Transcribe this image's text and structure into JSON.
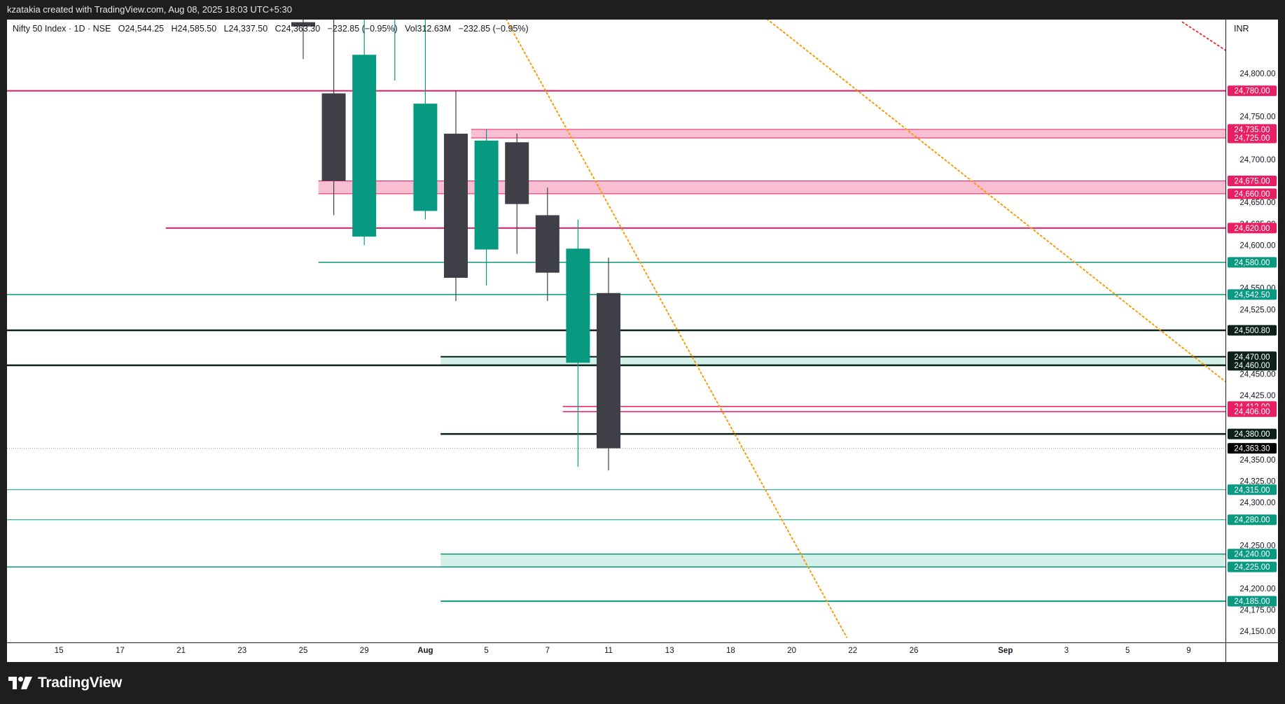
{
  "header": {
    "attribution": "kzatakia created with TradingView.com, Aug 08, 2025 18:03 UTC+5:30"
  },
  "legend": {
    "symbol": "Nifty 50 Index · 1D · NSE",
    "open_label": "O",
    "open": "24,544.25",
    "high_label": "H",
    "high": "24,585.50",
    "low_label": "L",
    "low": "24,337.50",
    "close_label": "C",
    "close": "24,363.30",
    "change": "−232.85 (−0.95%)",
    "vol_label": "Vol",
    "vol": "312.63M",
    "change2": "−232.85 (−0.95%)"
  },
  "currency": "INR",
  "brand": {
    "name": "TradingView",
    "icon": "tradingview-logo-icon"
  },
  "colors": {
    "up": "#089981",
    "down": "#3f3f48",
    "red": "#e91e63",
    "teal": "#089981",
    "black": "#0b2018",
    "orange": "#ff9800",
    "red_dotted": "#e53935"
  },
  "chart_data": {
    "type": "candlestick",
    "y_range": [
      24137,
      24863
    ],
    "y_ticks": [
      "24,800.00",
      "24,750.00",
      "24,700.00",
      "24,650.00",
      "24,625.00",
      "24,600.00",
      "24,550.00",
      "24,525.00",
      "24,450.00",
      "24,425.00",
      "24,350.00",
      "24,325.00",
      "24,300.00",
      "24,250.00",
      "24,200.00",
      "24,175.00",
      "24,150.00"
    ],
    "x_ticks": [
      {
        "label": "15",
        "slot": -13
      },
      {
        "label": "17",
        "slot": -11
      },
      {
        "label": "21",
        "slot": -9
      },
      {
        "label": "23",
        "slot": -7
      },
      {
        "label": "25",
        "slot": -5
      },
      {
        "label": "29",
        "slot": -3
      },
      {
        "label": "Aug",
        "slot": -1
      },
      {
        "label": "5",
        "slot": 1
      },
      {
        "label": "7",
        "slot": 3
      },
      {
        "label": "11",
        "slot": 5
      },
      {
        "label": "13",
        "slot": 7
      },
      {
        "label": "18",
        "slot": 9
      },
      {
        "label": "20",
        "slot": 11
      },
      {
        "label": "22",
        "slot": 13
      },
      {
        "label": "26",
        "slot": 15
      },
      {
        "label": "Sep",
        "slot": 18
      },
      {
        "label": "3",
        "slot": 20
      },
      {
        "label": "5",
        "slot": 22
      },
      {
        "label": "9",
        "slot": 24
      }
    ],
    "candles": [
      {
        "slot": -5,
        "o": 24860,
        "h": 24880,
        "l": 24817,
        "c": 24855
      },
      {
        "slot": -4,
        "o": 24777,
        "h": 24900,
        "l": 24635,
        "c": 24675
      },
      {
        "slot": -3,
        "o": 24610,
        "h": 24900,
        "l": 24600,
        "c": 24822
      },
      {
        "slot": -2,
        "o": 24900,
        "h": 24950,
        "l": 24792,
        "c": 24920
      },
      {
        "slot": -1,
        "o": 24640,
        "h": 24880,
        "l": 24630,
        "c": 24765
      },
      {
        "slot": 0,
        "o": 24730,
        "h": 24780,
        "l": 24535,
        "c": 24562
      },
      {
        "slot": 1,
        "o": 24595,
        "h": 24735,
        "l": 24553,
        "c": 24722
      },
      {
        "slot": 2,
        "o": 24720,
        "h": 24730,
        "l": 24590,
        "c": 24648
      },
      {
        "slot": 3,
        "o": 24635,
        "h": 24667,
        "l": 24535,
        "c": 24568
      },
      {
        "slot": 4,
        "o": 24463,
        "h": 24630,
        "l": 24342,
        "c": 24596
      },
      {
        "slot": 5,
        "o": 24544.25,
        "h": 24585.5,
        "l": 24337.5,
        "c": 24363.3
      }
    ],
    "levels": [
      {
        "price": 24780,
        "label": "24,780.00",
        "color": "red",
        "from_slot": -20,
        "width": 2
      },
      {
        "price": 24620,
        "label": "24,620.00",
        "color": "red",
        "from_slot": -9.5,
        "width": 2
      },
      {
        "price": 24580,
        "label": "24,580.00",
        "color": "teal",
        "from_slot": -4.5,
        "width": 1.5
      },
      {
        "price": 24542.5,
        "label": "24,542.50",
        "color": "teal",
        "from_slot": -20,
        "width": 1.5
      },
      {
        "price": 24500.8,
        "label": "24,500.80",
        "color": "black",
        "from_slot": -20,
        "width": 2.5
      },
      {
        "price": 24460,
        "label": "24,460.00",
        "color": "black",
        "from_slot": -20,
        "width": 2.5
      },
      {
        "price": 24470,
        "label": "24,470.00",
        "color": "black",
        "from_slot": -0.5,
        "width": 2
      },
      {
        "price": 24412,
        "label": "24,412.00",
        "color": "red",
        "from_slot": 3.5,
        "width": 1.5
      },
      {
        "price": 24406,
        "label": "24,406.00",
        "color": "red",
        "from_slot": 3.5,
        "width": 1.5
      },
      {
        "price": 24380,
        "label": "24,380.00",
        "color": "black",
        "from_slot": -0.5,
        "width": 2.5
      },
      {
        "price": 24315,
        "label": "24,315.00",
        "color": "teal",
        "from_slot": -20,
        "width": 1
      },
      {
        "price": 24280,
        "label": "24,280.00",
        "color": "teal",
        "from_slot": -20,
        "width": 1
      },
      {
        "price": 24240,
        "label": "24,240.00",
        "color": "teal",
        "from_slot": -0.5,
        "width": 1.5
      },
      {
        "price": 24225,
        "label": "24,225.00",
        "color": "teal",
        "from_slot": -20,
        "width": 1.5
      },
      {
        "price": 24185,
        "label": "24,185.00",
        "color": "teal",
        "from_slot": -0.5,
        "width": 2
      },
      {
        "price": 24735,
        "label": "24,735.00",
        "color": "red",
        "from_slot": 0.5,
        "width": 1
      },
      {
        "price": 24725,
        "label": "24,725.00",
        "color": "red",
        "from_slot": 0.5,
        "width": 1
      },
      {
        "price": 24675,
        "label": "24,675.00",
        "color": "red",
        "from_slot": -4.5,
        "width": 1
      },
      {
        "price": 24660,
        "label": "24,660.00",
        "color": "red",
        "from_slot": -4.5,
        "width": 1
      }
    ],
    "zones": [
      {
        "top": 24735,
        "bottom": 24725,
        "color": "red",
        "from_slot": 0.5
      },
      {
        "top": 24675,
        "bottom": 24660,
        "color": "red",
        "from_slot": -4.5
      },
      {
        "top": 24470,
        "bottom": 24460,
        "color": "teal",
        "from_slot": -0.5
      },
      {
        "top": 24240,
        "bottom": 24225,
        "color": "teal",
        "from_slot": -0.5
      }
    ],
    "last_price": {
      "price": 24363.3,
      "label": "24,363.30"
    },
    "trendlines": [
      {
        "color": "orange",
        "p1": {
          "slot": 0.85,
          "price": 24915
        },
        "p2": {
          "slot": 12.8,
          "price": 24143
        }
      },
      {
        "color": "orange",
        "p1": {
          "slot": 8.9,
          "price": 24900
        },
        "p2": {
          "slot": 25.95,
          "price": 24420
        }
      },
      {
        "color": "red_dotted",
        "p1": {
          "slot": 23.8,
          "price": 24860
        },
        "p2": {
          "slot": 25.95,
          "price": 24810
        }
      }
    ]
  }
}
